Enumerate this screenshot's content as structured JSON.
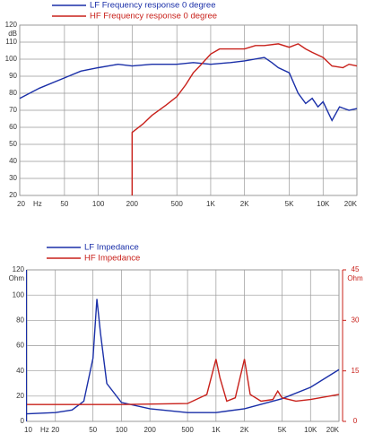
{
  "chart_data": [
    {
      "type": "line",
      "xscale": "log",
      "grid": true,
      "x_unit": "Hz",
      "y_unit": "dB",
      "legend": "top-left",
      "xlim": [
        20,
        20000
      ],
      "ylim": [
        20,
        120
      ],
      "xticks": [
        20,
        50,
        100,
        200,
        500,
        {
          "value": 1000,
          "label": "1K"
        },
        {
          "value": 2000,
          "label": "2K"
        },
        {
          "value": 5000,
          "label": "5K"
        },
        {
          "value": 10000,
          "label": "10K"
        },
        {
          "value": 20000,
          "label": "20K"
        }
      ],
      "yticks": [
        20,
        30,
        40,
        50,
        60,
        70,
        80,
        90,
        100,
        110,
        120
      ],
      "series": [
        {
          "name": "LF Frequency response 0 degree",
          "color": "#1a2fa8",
          "x": [
            20,
            30,
            50,
            70,
            100,
            150,
            200,
            300,
            500,
            700,
            1000,
            1500,
            2000,
            3000,
            3500,
            4000,
            5000,
            6000,
            7000,
            8000,
            9000,
            10000,
            12000,
            14000,
            17000,
            20000
          ],
          "values": [
            77,
            83,
            89,
            93,
            95,
            97,
            96,
            97,
            97,
            98,
            97,
            98,
            99,
            101,
            98,
            95,
            92,
            80,
            74,
            77,
            72,
            75,
            64,
            72,
            70,
            71
          ]
        },
        {
          "name": "HF Frequency response 0 degree",
          "color": "#c8201a",
          "x": [
            200,
            200,
            250,
            300,
            400,
            500,
            600,
            700,
            800,
            1000,
            1200,
            1500,
            2000,
            2500,
            3000,
            4000,
            5000,
            6000,
            7000,
            8000,
            10000,
            12000,
            15000,
            17000,
            20000
          ],
          "values": [
            20,
            57,
            62,
            67,
            73,
            78,
            85,
            92,
            96,
            103,
            106,
            106,
            106,
            108,
            108,
            109,
            107,
            109,
            106,
            104,
            101,
            96,
            95,
            97,
            96
          ]
        }
      ]
    },
    {
      "type": "line",
      "xscale": "log",
      "grid": true,
      "x_unit": "Hz",
      "y_unit": "Ohm",
      "y2_unit": "Ohm",
      "legend": "top-left",
      "xlim": [
        10,
        20000
      ],
      "ylim": [
        0,
        120
      ],
      "y2lim": [
        0,
        45
      ],
      "xticks": [
        10,
        20,
        50,
        100,
        200,
        500,
        {
          "value": 1000,
          "label": "1K"
        },
        {
          "value": 2000,
          "label": "2K"
        },
        {
          "value": 5000,
          "label": "5K"
        },
        {
          "value": 10000,
          "label": "10K"
        },
        {
          "value": 20000,
          "label": "20K"
        }
      ],
      "yticks": [
        0,
        20,
        40,
        60,
        80,
        100,
        120
      ],
      "y2ticks": [
        0,
        15,
        30,
        45
      ],
      "series": [
        {
          "name": "LF Impedance",
          "color": "#1a2fa8",
          "x": [
            10,
            20,
            30,
            40,
            50,
            55,
            60,
            70,
            100,
            200,
            500,
            1000,
            2000,
            5000,
            10000,
            20000
          ],
          "values": [
            6,
            7,
            9,
            16,
            50,
            97,
            70,
            30,
            15,
            10,
            7,
            7,
            10,
            18,
            27,
            41
          ]
        },
        {
          "name": "HF Impedance",
          "color": "#c8201a",
          "axis": "y2",
          "x": [
            10,
            100,
            500,
            800,
            1000,
            1100,
            1300,
            1600,
            2000,
            2300,
            3000,
            4000,
            4500,
            5000,
            7000,
            10000,
            20000
          ],
          "values": [
            5,
            5,
            5.3,
            8,
            18.5,
            13,
            6,
            7,
            18.5,
            8,
            6,
            6.5,
            9,
            7,
            6,
            6.5,
            8
          ]
        }
      ]
    }
  ]
}
